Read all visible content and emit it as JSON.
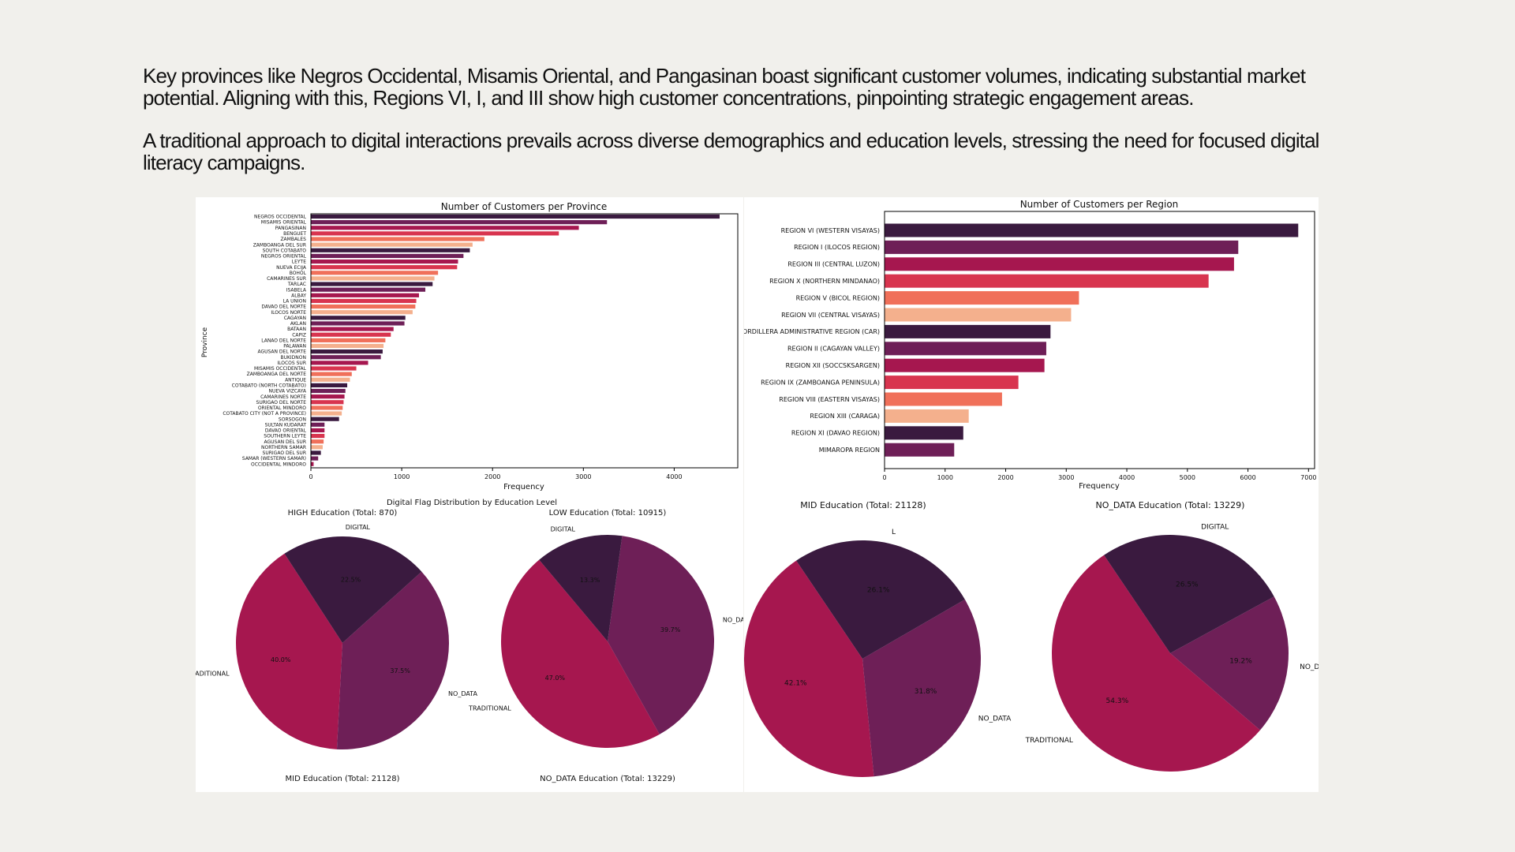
{
  "text": {
    "p1": "Key provinces like Negros Occidental, Misamis Oriental, and Pangasinan boast significant customer volumes, indicating substantial market potential. Aligning with this, Regions VI, I, and III show high customer concentrations, pinpointing strategic engagement areas.",
    "p2": "A traditional approach to digital interactions prevails across diverse demographics and education levels, stressing the need for focused digital literacy campaigns."
  },
  "palette": [
    "#3a1a3f",
    "#6e1f57",
    "#a6174f",
    "#d8344f",
    "#f0705a",
    "#f4b08d"
  ],
  "chart_data": [
    {
      "type": "bar",
      "orientation": "horizontal",
      "title": "Number of Customers per Province",
      "xlabel": "Frequency",
      "ylabel": "Province",
      "xlim": [
        0,
        4700
      ],
      "xticks": [
        0,
        1000,
        2000,
        3000,
        4000
      ],
      "categories": [
        "NEGROS OCCIDENTAL",
        "MISAMIS ORIENTAL",
        "PANGASINAN",
        "BENGUET",
        "ZAMBALES",
        "ZAMBOANGA DEL SUR",
        "SOUTH COTABATO",
        "NEGROS ORIENTAL",
        "LEYTE",
        "NUEVA ECIJA",
        "BOHOL",
        "CAMARINES SUR",
        "TARLAC",
        "ISABELA",
        "ALBAY",
        "LA UNION",
        "DAVAO DEL NORTE",
        "ILOCOS NORTE",
        "CAGAYAN",
        "AKLAN",
        "BATAAN",
        "CAPIZ",
        "LANAO DEL NORTE",
        "PALAWAN",
        "AGUSAN DEL NORTE",
        "BUKIDNON",
        "ILOCOS SUR",
        "MISAMIS OCCIDENTAL",
        "ZAMBOANGA DEL NORTE",
        "ANTIQUE",
        "COTABATO (NORTH COTABATO)",
        "NUEVA VIZCAYA",
        "CAMARINES NORTE",
        "SURIGAO DEL NORTE",
        "ORIENTAL MINDORO",
        "COTABATO CITY (NOT A PROVINCE)",
        "SORSOGON",
        "SULTAN KUDARAT",
        "DAVAO ORIENTAL",
        "SOUTHERN LEYTE",
        "AGUSAN DEL SUR",
        "NORTHERN SAMAR",
        "SURIGAO DEL SUR",
        "SAMAR (WESTERN SAMAR)",
        "OCCIDENTAL MINDORO"
      ],
      "values": [
        4500,
        3260,
        2950,
        2730,
        1910,
        1780,
        1750,
        1680,
        1620,
        1610,
        1400,
        1360,
        1340,
        1260,
        1190,
        1160,
        1150,
        1120,
        1040,
        1030,
        910,
        880,
        820,
        800,
        790,
        770,
        630,
        500,
        450,
        430,
        400,
        380,
        370,
        360,
        350,
        340,
        310,
        150,
        150,
        150,
        140,
        130,
        110,
        80,
        30
      ]
    },
    {
      "type": "bar",
      "orientation": "horizontal",
      "title": "Number of Customers per Region",
      "xlabel": "Frequency",
      "xlim": [
        0,
        7100
      ],
      "xticks": [
        0,
        1000,
        2000,
        3000,
        4000,
        5000,
        6000,
        7000
      ],
      "categories": [
        "REGION VI (WESTERN VISAYAS)",
        "REGION I (ILOCOS REGION)",
        "REGION III (CENTRAL LUZON)",
        "REGION X (NORTHERN MINDANAO)",
        "REGION V (BICOL REGION)",
        "REGION VII (CENTRAL VISAYAS)",
        "CORDILLERA ADMINISTRATIVE REGION (CAR)",
        "REGION II (CAGAYAN VALLEY)",
        "REGION XII (SOCCSKSARGEN)",
        "REGION IX (ZAMBOANGA PENINSULA)",
        "REGION VIII (EASTERN VISAYAS)",
        "REGION XIII (CARAGA)",
        "REGION XI (DAVAO REGION)",
        "MIMAROPA REGION"
      ],
      "values": [
        6830,
        5840,
        5770,
        5350,
        3210,
        3080,
        2740,
        2670,
        2640,
        2210,
        1940,
        1390,
        1300,
        1150
      ]
    },
    {
      "type": "pie",
      "suptitle": "Digital Flag Distribution by Education Level",
      "title": "HIGH Education (Total: 870)",
      "labels": [
        "TRADITIONAL",
        "NO_DATA",
        "DIGITAL"
      ],
      "values": [
        40.0,
        37.5,
        22.5
      ],
      "pct_labels": [
        "40.0%",
        "37.5%",
        "22.5%"
      ]
    },
    {
      "type": "pie",
      "title": "LOW Education (Total: 10915)",
      "labels": [
        "TRADITIONAL",
        "NO_DATA",
        "DIGITAL"
      ],
      "values": [
        47.0,
        39.7,
        13.3
      ],
      "pct_labels": [
        "47.0%",
        "39.7%",
        "13.3%"
      ]
    },
    {
      "type": "pie",
      "title": "MID Education (Total: 21128)",
      "labels": [
        "TRADITIONAL",
        "NO_DATA",
        "L"
      ],
      "values": [
        42.1,
        31.8,
        26.1
      ],
      "pct_labels": [
        "42.1%",
        "31.8%",
        "26.1%"
      ]
    },
    {
      "type": "pie",
      "title": "NO_DATA Education (Total: 13229)",
      "labels": [
        "TRADITIONAL",
        "NO_DATA",
        "DIGITAL"
      ],
      "values": [
        54.3,
        19.2,
        26.5
      ],
      "pct_labels": [
        "54.3%",
        "19.2%",
        "26.5%"
      ]
    }
  ],
  "footer_titles": {
    "left_1": "MID Education (Total: 21128)",
    "left_2": "NO_DATA Education (Total: 13229)"
  }
}
